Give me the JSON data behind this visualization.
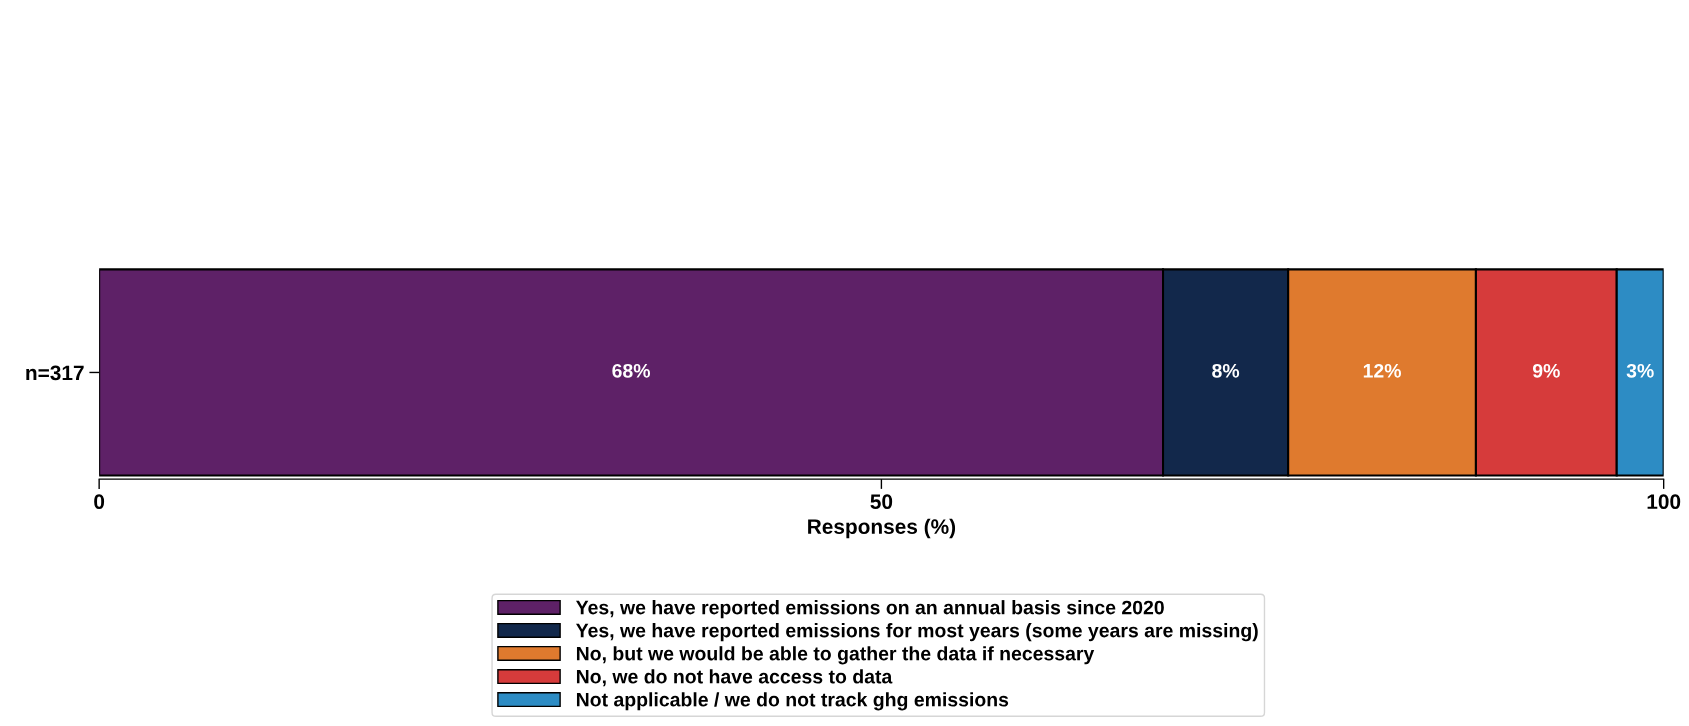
{
  "chart_data": {
    "type": "bar",
    "orientation": "horizontal",
    "stacked": true,
    "categories": [
      "n=317"
    ],
    "xlabel": "Responses (%)",
    "xlim": [
      0,
      100
    ],
    "xticks": [
      0,
      50,
      100
    ],
    "legend": "bottom",
    "grid": false,
    "series": [
      {
        "name": "Yes, we have reported emissions on an annual basis since 2020",
        "color": "#5e2167",
        "values": [
          68
        ],
        "value_labels": [
          "68%"
        ]
      },
      {
        "name": "Yes, we have reported emissions for most years (some years are missing)",
        "color": "#12284b",
        "values": [
          8
        ],
        "value_labels": [
          "8%"
        ]
      },
      {
        "name": "No, but we would be able to gather the data if necessary",
        "color": "#df7a2e",
        "values": [
          12
        ],
        "value_labels": [
          "12%"
        ]
      },
      {
        "name": "No, we do not have access to data",
        "color": "#d63b3b",
        "values": [
          9
        ],
        "value_labels": [
          "9%"
        ]
      },
      {
        "name": "Not applicable / we do not track ghg emissions",
        "color": "#2d8cc4",
        "values": [
          3
        ],
        "value_labels": [
          "3%"
        ]
      }
    ]
  }
}
